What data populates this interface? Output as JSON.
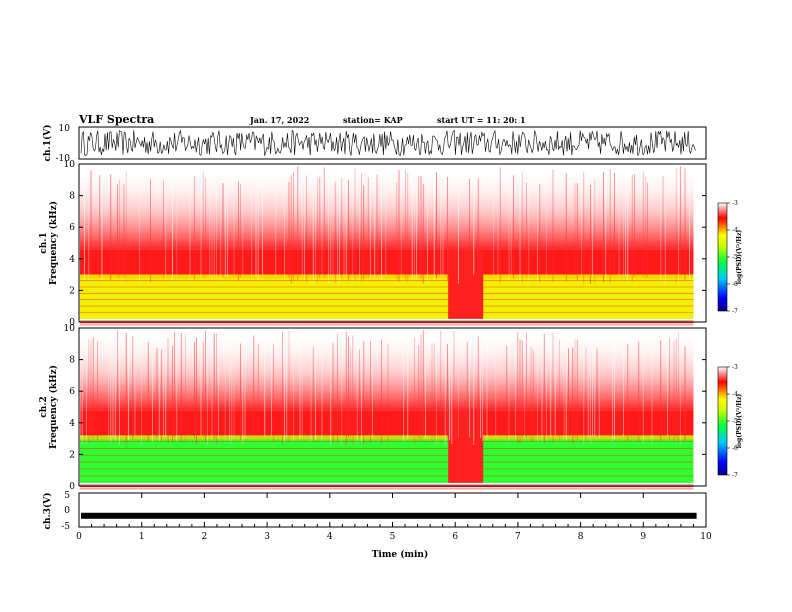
{
  "header": {
    "title": "VLF Spectra",
    "date": "Jan. 17, 2022",
    "station": "station= KAP",
    "start": "start  UT  =   11: 20: 1"
  },
  "chart_data": [
    {
      "type": "line",
      "name": "waveform-ch1",
      "ylabel": "ch.1(V)",
      "ylim": [
        -10,
        10
      ],
      "yticks": [
        "10",
        "-10"
      ],
      "xlim": [
        0,
        10
      ],
      "description_values": {
        "amplitude_range": [
          -8,
          8
        ]
      }
    },
    {
      "type": "heatmap",
      "name": "spectrogram-ch1",
      "ylabel": "ch.1\nFrequency  (kHz)",
      "ylim": [
        0,
        10
      ],
      "yticks": [
        "0",
        "2",
        "4",
        "6",
        "8",
        "10"
      ],
      "xlim": [
        0,
        9.85
      ],
      "band_top_khz": 3.0,
      "red_top_khz": 4.6,
      "quiet_interval_min": [
        5.8,
        6.35
      ],
      "colorbar": {
        "label": "log(PSD)(V²/Hz)",
        "ticks": [
          "-3",
          "-4",
          "-5",
          "-6",
          "-7"
        ],
        "range": [
          -7,
          -3
        ]
      }
    },
    {
      "type": "heatmap",
      "name": "spectrogram-ch2",
      "ylabel": "ch.2\nFrequency  (kHz)",
      "ylim": [
        0,
        10
      ],
      "yticks": [
        "0",
        "2",
        "4",
        "6",
        "8",
        "10"
      ],
      "xlim": [
        0,
        9.85
      ],
      "band_top_khz": 3.2,
      "red_top_khz": 4.8,
      "quiet_interval_min": [
        5.8,
        6.35
      ],
      "colorbar": {
        "label": "log(PSD)(V²/Hz)",
        "ticks": [
          "-3",
          "-4",
          "-5",
          "-6",
          "-7"
        ],
        "range": [
          -7,
          -3
        ]
      }
    },
    {
      "type": "line",
      "name": "waveform-ch3",
      "ylabel": "ch.3(V)",
      "ylim": [
        -5,
        5
      ],
      "yticks": [
        "5",
        "0",
        "-5"
      ],
      "xlim": [
        0,
        10
      ],
      "level_v": -1.7,
      "xlabel": "Time  (min)",
      "xticks": [
        "0",
        "1",
        "2",
        "3",
        "4",
        "5",
        "6",
        "7",
        "8",
        "9",
        "10"
      ]
    }
  ],
  "colors": {
    "white": "#ffffff",
    "red": "#ff1010",
    "yellow": "#f0f000",
    "green": "#20ff20",
    "axis": "#000000"
  }
}
